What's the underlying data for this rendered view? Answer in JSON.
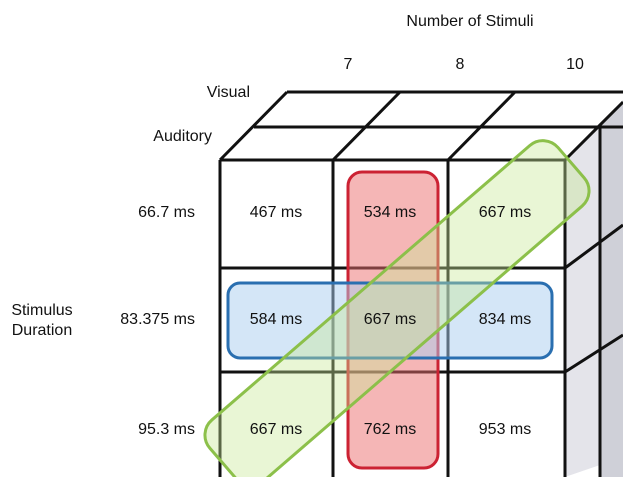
{
  "header": {
    "title": "Number of Stimuli"
  },
  "columns": [
    "7",
    "8",
    "10"
  ],
  "layers": [
    "Visual",
    "Auditory"
  ],
  "axis_label": [
    "Stimulus",
    "Duration"
  ],
  "rows": [
    {
      "label": "66.7 ms",
      "cells": [
        "467 ms",
        "534 ms",
        "667 ms"
      ]
    },
    {
      "label": "83.375 ms",
      "cells": [
        "584 ms",
        "667 ms",
        "834 ms"
      ]
    },
    {
      "label": "95.3 ms",
      "cells": [
        "667 ms",
        "762 ms",
        "953 ms"
      ]
    }
  ]
}
